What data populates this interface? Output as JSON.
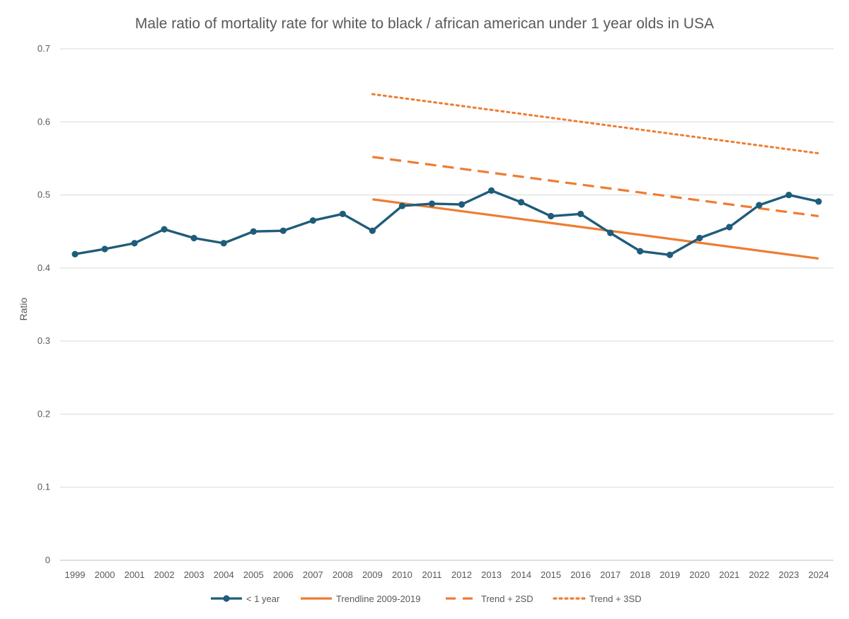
{
  "chart_data": {
    "type": "line",
    "title": "Male ratio of mortality rate for white to black / african american under 1 year olds in USA",
    "xlabel": "",
    "ylabel": "Ratio",
    "ylim": [
      0,
      0.7
    ],
    "y_ticks": [
      "0",
      "0.1",
      "0.2",
      "0.3",
      "0.4",
      "0.5",
      "0.6",
      "0.7"
    ],
    "grid": true,
    "legend_position": "bottom",
    "categories": [
      "1999",
      "2000",
      "2001",
      "2002",
      "2003",
      "2004",
      "2005",
      "2006",
      "2007",
      "2008",
      "2009",
      "2010",
      "2011",
      "2012",
      "2013",
      "2014",
      "2015",
      "2016",
      "2017",
      "2018",
      "2019",
      "2020",
      "2021",
      "2022",
      "2023",
      "2024"
    ],
    "series": [
      {
        "name": "< 1 year",
        "color": "#1f5c7a",
        "style": "solid-markers",
        "values": [
          0.419,
          0.426,
          0.434,
          0.453,
          0.441,
          0.434,
          0.45,
          0.451,
          0.465,
          0.474,
          0.451,
          0.485,
          0.488,
          0.487,
          0.506,
          0.49,
          0.471,
          0.474,
          0.448,
          0.423,
          0.418,
          0.441,
          0.456,
          0.486,
          0.5,
          0.491
        ]
      },
      {
        "name": "Trendline 2009-2019",
        "color": "#ed7d31",
        "style": "solid",
        "x_range": [
          "2009",
          "2024"
        ],
        "values_at_range": [
          0.494,
          0.413
        ]
      },
      {
        "name": "Trend + 2SD",
        "color": "#ed7d31",
        "style": "dashed",
        "x_range": [
          "2009",
          "2024"
        ],
        "values_at_range": [
          0.552,
          0.471
        ]
      },
      {
        "name": "Trend + 3SD",
        "color": "#ed7d31",
        "style": "dotted",
        "x_range": [
          "2009",
          "2024"
        ],
        "values_at_range": [
          0.638,
          0.557
        ]
      }
    ]
  }
}
